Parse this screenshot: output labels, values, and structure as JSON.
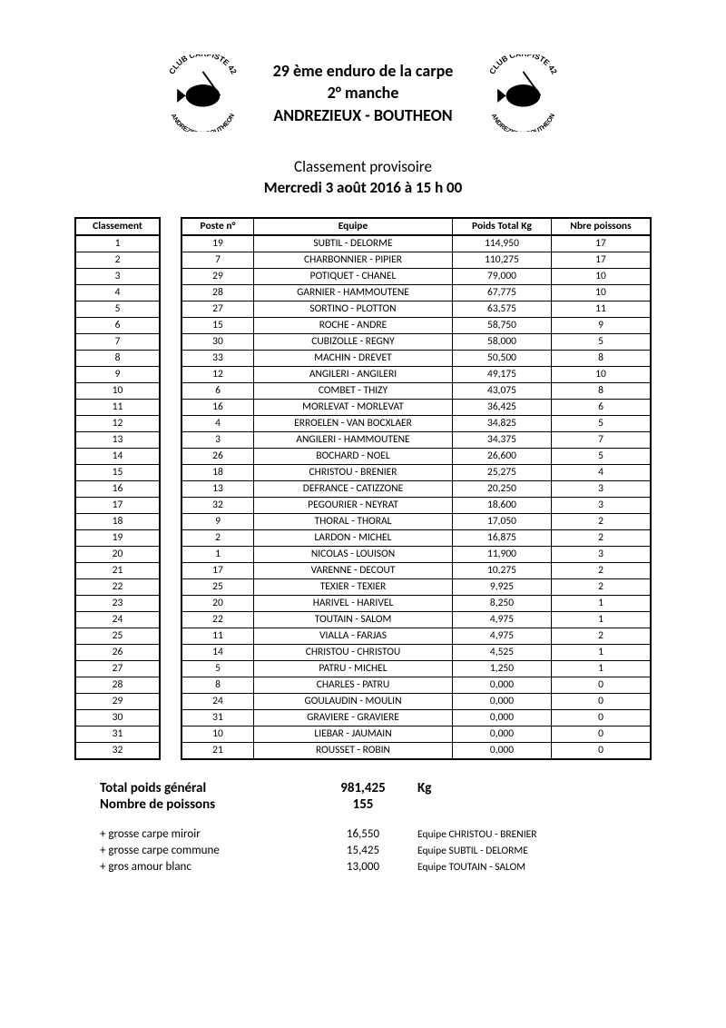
{
  "header": {
    "line1": "29 ème enduro de la carpe",
    "line2": "2° manche",
    "line3": "ANDREZIEUX - BOUTHEON",
    "logo_text_top": "CLUB CARPISTE 42",
    "logo_text_bottom": "ANDREZIEUX BOUTHEON"
  },
  "subheader": {
    "line1": "Classement provisoire",
    "line2": "Mercredi 3 août 2016 à 15 h 00"
  },
  "columns": {
    "classement": "Classement",
    "poste": "Poste n°",
    "equipe": "Equipe",
    "poids": "Poids Total Kg",
    "nbre": "Nbre poissons"
  },
  "rows": [
    {
      "rank": "1",
      "poste": "19",
      "equipe": "SUBTIL - DELORME",
      "poids": "114,950",
      "nbre": "17"
    },
    {
      "rank": "2",
      "poste": "7",
      "equipe": "CHARBONNIER - PIPIER",
      "poids": "110,275",
      "nbre": "17"
    },
    {
      "rank": "3",
      "poste": "29",
      "equipe": "POTIQUET - CHANEL",
      "poids": "79,000",
      "nbre": "10"
    },
    {
      "rank": "4",
      "poste": "28",
      "equipe": "GARNIER - HAMMOUTENE",
      "poids": "67,775",
      "nbre": "10"
    },
    {
      "rank": "5",
      "poste": "27",
      "equipe": "SORTINO - PLOTTON",
      "poids": "63,575",
      "nbre": "11"
    },
    {
      "rank": "6",
      "poste": "15",
      "equipe": "ROCHE - ANDRE",
      "poids": "58,750",
      "nbre": "9"
    },
    {
      "rank": "7",
      "poste": "30",
      "equipe": "CUBIZOLLE - REGNY",
      "poids": "58,000",
      "nbre": "5"
    },
    {
      "rank": "8",
      "poste": "33",
      "equipe": "MACHIN - DREVET",
      "poids": "50,500",
      "nbre": "8"
    },
    {
      "rank": "9",
      "poste": "12",
      "equipe": "ANGILERI - ANGILERI",
      "poids": "49,175",
      "nbre": "10"
    },
    {
      "rank": "10",
      "poste": "6",
      "equipe": "COMBET - THIZY",
      "poids": "43,075",
      "nbre": "8"
    },
    {
      "rank": "11",
      "poste": "16",
      "equipe": "MORLEVAT - MORLEVAT",
      "poids": "36,425",
      "nbre": "6"
    },
    {
      "rank": "12",
      "poste": "4",
      "equipe": "ERROELEN - VAN BOCXLAER",
      "poids": "34,825",
      "nbre": "5"
    },
    {
      "rank": "13",
      "poste": "3",
      "equipe": "ANGILERI - HAMMOUTENE",
      "poids": "34,375",
      "nbre": "7"
    },
    {
      "rank": "14",
      "poste": "26",
      "equipe": "BOCHARD - NOEL",
      "poids": "26,600",
      "nbre": "5"
    },
    {
      "rank": "15",
      "poste": "18",
      "equipe": "CHRISTOU - BRENIER",
      "poids": "25,275",
      "nbre": "4"
    },
    {
      "rank": "16",
      "poste": "13",
      "equipe": "DEFRANCE - CATIZZONE",
      "poids": "20,250",
      "nbre": "3"
    },
    {
      "rank": "17",
      "poste": "32",
      "equipe": "PEGOURIER - NEYRAT",
      "poids": "18,600",
      "nbre": "3"
    },
    {
      "rank": "18",
      "poste": "9",
      "equipe": "THORAL - THORAL",
      "poids": "17,050",
      "nbre": "2"
    },
    {
      "rank": "19",
      "poste": "2",
      "equipe": "LARDON - MICHEL",
      "poids": "16,875",
      "nbre": "2"
    },
    {
      "rank": "20",
      "poste": "1",
      "equipe": "NICOLAS - LOUISON",
      "poids": "11,900",
      "nbre": "3"
    },
    {
      "rank": "21",
      "poste": "17",
      "equipe": "VARENNE - DECOUT",
      "poids": "10,275",
      "nbre": "2"
    },
    {
      "rank": "22",
      "poste": "25",
      "equipe": "TEXIER - TEXIER",
      "poids": "9,925",
      "nbre": "2"
    },
    {
      "rank": "23",
      "poste": "20",
      "equipe": "HARIVEL - HARIVEL",
      "poids": "8,250",
      "nbre": "1"
    },
    {
      "rank": "24",
      "poste": "22",
      "equipe": "TOUTAIN - SALOM",
      "poids": "4,975",
      "nbre": "1"
    },
    {
      "rank": "25",
      "poste": "11",
      "equipe": "VIALLA - FARJAS",
      "poids": "4,975",
      "nbre": "2"
    },
    {
      "rank": "26",
      "poste": "14",
      "equipe": "CHRISTOU - CHRISTOU",
      "poids": "4,525",
      "nbre": "1"
    },
    {
      "rank": "27",
      "poste": "5",
      "equipe": "PATRU - MICHEL",
      "poids": "1,250",
      "nbre": "1"
    },
    {
      "rank": "28",
      "poste": "8",
      "equipe": "CHARLES - PATRU",
      "poids": "0,000",
      "nbre": "0"
    },
    {
      "rank": "29",
      "poste": "24",
      "equipe": "GOULAUDIN - MOULIN",
      "poids": "0,000",
      "nbre": "0"
    },
    {
      "rank": "30",
      "poste": "31",
      "equipe": "GRAVIERE - GRAVIERE",
      "poids": "0,000",
      "nbre": "0"
    },
    {
      "rank": "31",
      "poste": "10",
      "equipe": "LIEBAR - JAUMAIN",
      "poids": "0,000",
      "nbre": "0"
    },
    {
      "rank": "32",
      "poste": "21",
      "equipe": "ROUSSET - ROBIN",
      "poids": "0,000",
      "nbre": "0"
    }
  ],
  "totals": {
    "weight_label": "Total poids général",
    "weight_value": "981,425",
    "weight_unit": "Kg",
    "fish_label": "Nombre de poissons",
    "fish_value": "155"
  },
  "records": [
    {
      "label": "+ grosse carpe miroir",
      "value": "16,550",
      "team": "Equipe CHRISTOU - BRENIER"
    },
    {
      "label": "+ grosse carpe commune",
      "value": "15,425",
      "team": "Equipe SUBTIL - DELORME"
    },
    {
      "label": "+ gros amour blanc",
      "value": "13,000",
      "team": "Equipe TOUTAIN - SALOM"
    }
  ],
  "style": {
    "background_color": "#ffffff",
    "text_color": "#000000",
    "border_color": "#000000",
    "title_fontsize": 18,
    "sub_fontsize": 17,
    "table_fontsize": 11.5,
    "totals_fontsize": 15,
    "records_fontsize": 13
  }
}
